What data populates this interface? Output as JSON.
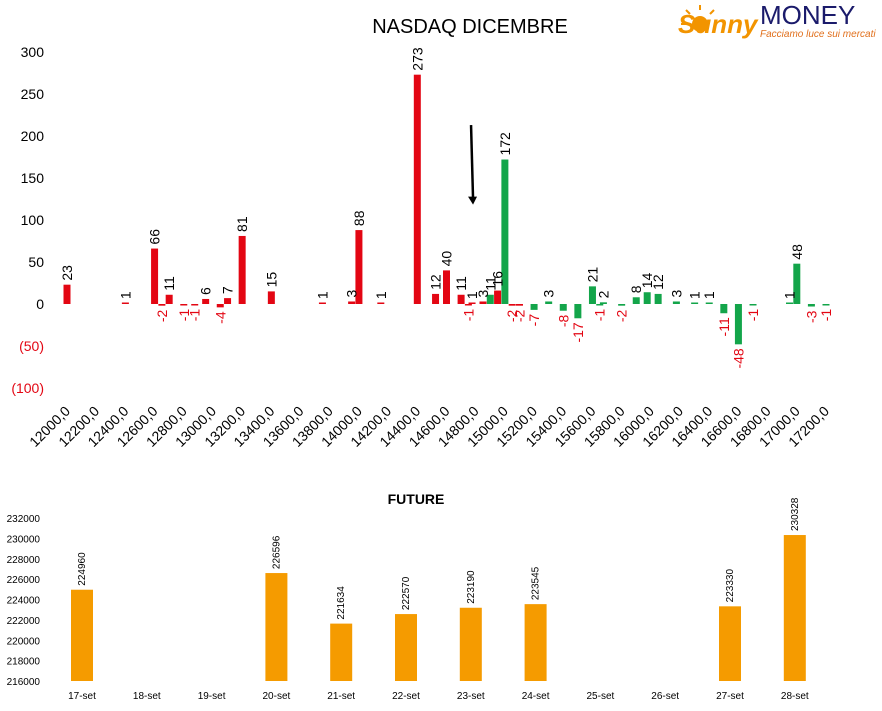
{
  "logo": {
    "brand_script": "Sunny",
    "brand_caps": "MONEY",
    "tagline": "Facciamo luce sui mercati",
    "colors": {
      "script": "#f29400",
      "caps": "#1b1b6b",
      "tagline": "#e1701d"
    }
  },
  "colors": {
    "positive": "#e30613",
    "negative": "#13a54a",
    "future": "#f59b00",
    "neg_label": "#e30613",
    "arrow": "#000000"
  },
  "chart_data": [
    {
      "type": "bar",
      "title": "NASDAQ DICEMBRE",
      "ylim": [
        -100,
        300
      ],
      "yticks": [
        {
          "v": 300,
          "label": "300"
        },
        {
          "v": 250,
          "label": "250"
        },
        {
          "v": 200,
          "label": "200"
        },
        {
          "v": 150,
          "label": "150"
        },
        {
          "v": 100,
          "label": "100"
        },
        {
          "v": 50,
          "label": "50"
        },
        {
          "v": 0,
          "label": "0"
        },
        {
          "v": -50,
          "label": "(50)"
        },
        {
          "v": -100,
          "label": "(100)"
        }
      ],
      "x_range": [
        12000,
        17200
      ],
      "xticks": [
        "12000,0",
        "12200,0",
        "12400,0",
        "12600,0",
        "12800,0",
        "13000,0",
        "13200,0",
        "13400,0",
        "13600,0",
        "13800,0",
        "14000,0",
        "14200,0",
        "14400,0",
        "14600,0",
        "14800,0",
        "15000,0",
        "15200,0",
        "15400,0",
        "15600,0",
        "15800,0",
        "16000,0",
        "16200,0",
        "16400,0",
        "16600,0",
        "16800,0",
        "17000,0",
        "17200,0"
      ],
      "series": [
        {
          "kind": "call",
          "points": [
            {
              "x": 12000,
              "v": 23
            },
            {
              "x": 12400,
              "v": 1
            },
            {
              "x": 12600,
              "v": 66
            },
            {
              "x": 12700,
              "v": 11
            },
            {
              "x": 12950,
              "v": 6
            },
            {
              "x": 13100,
              "v": 7
            },
            {
              "x": 13200,
              "v": 81
            },
            {
              "x": 13400,
              "v": 15
            },
            {
              "x": 13750,
              "v": 1
            },
            {
              "x": 13950,
              "v": 3
            },
            {
              "x": 14000,
              "v": 88
            },
            {
              "x": 14150,
              "v": 1
            },
            {
              "x": 14400,
              "v": 273
            },
            {
              "x": 14525,
              "v": 12
            },
            {
              "x": 14600,
              "v": 40
            },
            {
              "x": 14700,
              "v": 11
            },
            {
              "x": 14775,
              "v": 1
            },
            {
              "x": 14850,
              "v": 3
            },
            {
              "x": 14950,
              "v": 16
            }
          ]
        },
        {
          "kind": "call-neg",
          "points": [
            {
              "x": 12650,
              "v": -2
            },
            {
              "x": 12800,
              "v": -1
            },
            {
              "x": 12875,
              "v": -1
            },
            {
              "x": 13050,
              "v": -4
            },
            {
              "x": 14750,
              "v": -1
            },
            {
              "x": 15050,
              "v": -2
            },
            {
              "x": 15100,
              "v": -2
            }
          ]
        },
        {
          "kind": "put",
          "points": [
            {
              "x": 14900,
              "v": 11
            },
            {
              "x": 15000,
              "v": 172
            },
            {
              "x": 15300,
              "v": 3
            },
            {
              "x": 15600,
              "v": 21
            },
            {
              "x": 15675,
              "v": 2
            },
            {
              "x": 15900,
              "v": 8
            },
            {
              "x": 15975,
              "v": 14
            },
            {
              "x": 16050,
              "v": 12
            },
            {
              "x": 16175,
              "v": 3
            },
            {
              "x": 16300,
              "v": 1
            },
            {
              "x": 16400,
              "v": 1
            },
            {
              "x": 16950,
              "v": 1
            },
            {
              "x": 17000,
              "v": 48
            }
          ]
        },
        {
          "kind": "put-neg",
          "points": [
            {
              "x": 15200,
              "v": -7
            },
            {
              "x": 15400,
              "v": -8
            },
            {
              "x": 15500,
              "v": -17
            },
            {
              "x": 15650,
              "v": -1
            },
            {
              "x": 15800,
              "v": -2
            },
            {
              "x": 16500,
              "v": -11
            },
            {
              "x": 16600,
              "v": -48
            },
            {
              "x": 16700,
              "v": -1
            },
            {
              "x": 17100,
              "v": -3
            },
            {
              "x": 17200,
              "v": -1
            }
          ]
        }
      ],
      "annotations": [
        {
          "type": "arrow-down",
          "x": 14775,
          "from": 213,
          "to": 135
        }
      ]
    },
    {
      "type": "bar",
      "title": "FUTURE",
      "ylim": [
        216000,
        232000
      ],
      "yticks": [
        "216000",
        "218000",
        "220000",
        "222000",
        "224000",
        "226000",
        "228000",
        "230000",
        "232000"
      ],
      "categories": [
        "17-set",
        "18-set",
        "19-set",
        "20-set",
        "21-set",
        "22-set",
        "23-set",
        "24-set",
        "25-set",
        "26-set",
        "27-set",
        "28-set"
      ],
      "values": [
        224960,
        null,
        null,
        226596,
        221634,
        222570,
        223190,
        223545,
        null,
        null,
        223330,
        230328
      ],
      "value_labels": [
        "224960",
        "",
        "",
        "226596",
        "221634",
        "222570",
        "223190",
        "223545",
        "",
        "",
        "223330",
        "230328"
      ]
    }
  ]
}
